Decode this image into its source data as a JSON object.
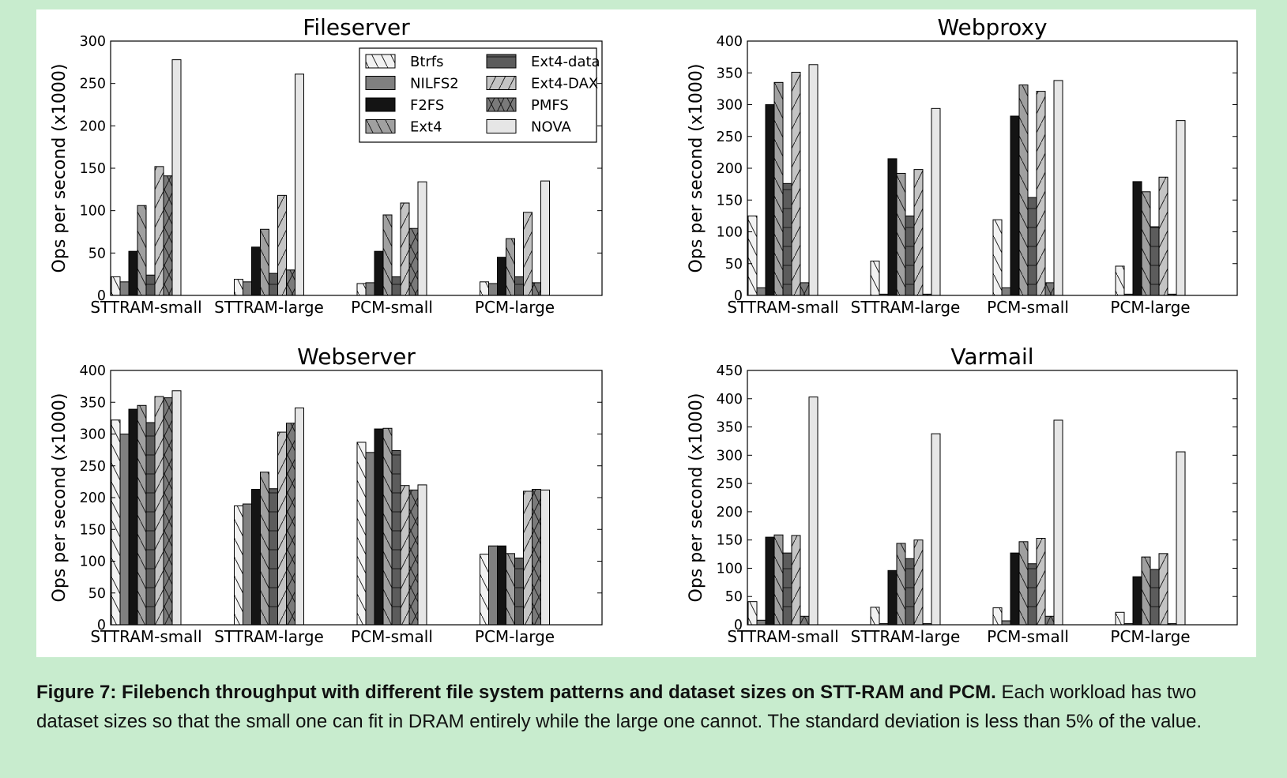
{
  "figure": {
    "caption_bold": "Figure 7: Filebench throughput with different file system patterns and dataset sizes on STT-RAM and PCM.",
    "caption_rest": " Each workload has two dataset sizes so that the small one can fit in DRAM entirely while the large one cannot. The standard deviation is less than 5% of the value."
  },
  "styles": {
    "Btrfs": {
      "color": "#f2f2f2",
      "hatch": "back"
    },
    "NILFS2": {
      "color": "#808080",
      "hatch": "none"
    },
    "F2FS": {
      "color": "#141414",
      "hatch": "none"
    },
    "Ext4": {
      "color": "#a0a0a0",
      "hatch": "back"
    },
    "Ext4-data": {
      "color": "#5c5c5c",
      "hatch": "horiz"
    },
    "Ext4-DAX": {
      "color": "#c4c4c4",
      "hatch": "fwd"
    },
    "PMFS": {
      "color": "#7a7a7a",
      "hatch": "cross"
    },
    "NOVA": {
      "color": "#e6e6e6",
      "hatch": "none"
    }
  },
  "chart_data": [
    {
      "type": "bar",
      "title": "Fileserver",
      "ylabel": "Ops per second (x1000)",
      "ylim": [
        0,
        300
      ],
      "yticks": [
        0,
        50,
        100,
        150,
        200,
        250,
        300
      ],
      "categories": [
        "STTRAM-small",
        "STTRAM-large",
        "PCM-small",
        "PCM-large"
      ],
      "legend": "top-right",
      "series": [
        {
          "name": "Btrfs",
          "values": [
            22,
            19,
            14,
            16
          ]
        },
        {
          "name": "NILFS2",
          "values": [
            16,
            16,
            15,
            14
          ]
        },
        {
          "name": "F2FS",
          "values": [
            52,
            57,
            52,
            45
          ]
        },
        {
          "name": "Ext4",
          "values": [
            106,
            78,
            95,
            67
          ]
        },
        {
          "name": "Ext4-data",
          "values": [
            24,
            26,
            22,
            22
          ]
        },
        {
          "name": "Ext4-DAX",
          "values": [
            152,
            118,
            109,
            98
          ]
        },
        {
          "name": "PMFS",
          "values": [
            141,
            30,
            79,
            15
          ]
        },
        {
          "name": "NOVA",
          "values": [
            278,
            261,
            134,
            135
          ]
        }
      ]
    },
    {
      "type": "bar",
      "title": "Webproxy",
      "ylabel": "Ops per second (x1000)",
      "ylim": [
        0,
        400
      ],
      "yticks": [
        0,
        50,
        100,
        150,
        200,
        250,
        300,
        350,
        400
      ],
      "categories": [
        "STTRAM-small",
        "STTRAM-large",
        "PCM-small",
        "PCM-large"
      ],
      "series": [
        {
          "name": "Btrfs",
          "values": [
            125,
            54,
            119,
            46
          ]
        },
        {
          "name": "NILFS2",
          "values": [
            12,
            2,
            12,
            2
          ]
        },
        {
          "name": "F2FS",
          "values": [
            300,
            215,
            282,
            179
          ]
        },
        {
          "name": "Ext4",
          "values": [
            335,
            192,
            331,
            163
          ]
        },
        {
          "name": "Ext4-data",
          "values": [
            176,
            125,
            154,
            108
          ]
        },
        {
          "name": "Ext4-DAX",
          "values": [
            351,
            198,
            321,
            186
          ]
        },
        {
          "name": "PMFS",
          "values": [
            20,
            2,
            20,
            2
          ]
        },
        {
          "name": "NOVA",
          "values": [
            363,
            294,
            338,
            275
          ]
        }
      ]
    },
    {
      "type": "bar",
      "title": "Webserver",
      "ylabel": "Ops per second (x1000)",
      "ylim": [
        0,
        400
      ],
      "yticks": [
        0,
        50,
        100,
        150,
        200,
        250,
        300,
        350,
        400
      ],
      "categories": [
        "STTRAM-small",
        "STTRAM-large",
        "PCM-small",
        "PCM-large"
      ],
      "series": [
        {
          "name": "Btrfs",
          "values": [
            322,
            187,
            287,
            111
          ]
        },
        {
          "name": "NILFS2",
          "values": [
            300,
            190,
            271,
            124
          ]
        },
        {
          "name": "F2FS",
          "values": [
            339,
            213,
            308,
            124
          ]
        },
        {
          "name": "Ext4",
          "values": [
            345,
            240,
            309,
            112
          ]
        },
        {
          "name": "Ext4-data",
          "values": [
            318,
            214,
            274,
            105
          ]
        },
        {
          "name": "Ext4-DAX",
          "values": [
            359,
            303,
            219,
            210
          ]
        },
        {
          "name": "PMFS",
          "values": [
            357,
            317,
            212,
            213
          ]
        },
        {
          "name": "NOVA",
          "values": [
            368,
            341,
            220,
            212
          ]
        }
      ]
    },
    {
      "type": "bar",
      "title": "Varmail",
      "ylabel": "Ops per second (x1000)",
      "ylim": [
        0,
        450
      ],
      "yticks": [
        0,
        50,
        100,
        150,
        200,
        250,
        300,
        350,
        400,
        450
      ],
      "categories": [
        "STTRAM-small",
        "STTRAM-large",
        "PCM-small",
        "PCM-large"
      ],
      "series": [
        {
          "name": "Btrfs",
          "values": [
            41,
            31,
            30,
            22
          ]
        },
        {
          "name": "NILFS2",
          "values": [
            8,
            2,
            7,
            2
          ]
        },
        {
          "name": "F2FS",
          "values": [
            155,
            96,
            127,
            85
          ]
        },
        {
          "name": "Ext4",
          "values": [
            159,
            144,
            147,
            120
          ]
        },
        {
          "name": "Ext4-data",
          "values": [
            127,
            117,
            108,
            98
          ]
        },
        {
          "name": "Ext4-DAX",
          "values": [
            158,
            150,
            153,
            126
          ]
        },
        {
          "name": "PMFS",
          "values": [
            15,
            2,
            15,
            2
          ]
        },
        {
          "name": "NOVA",
          "values": [
            403,
            338,
            362,
            306
          ]
        }
      ]
    }
  ]
}
